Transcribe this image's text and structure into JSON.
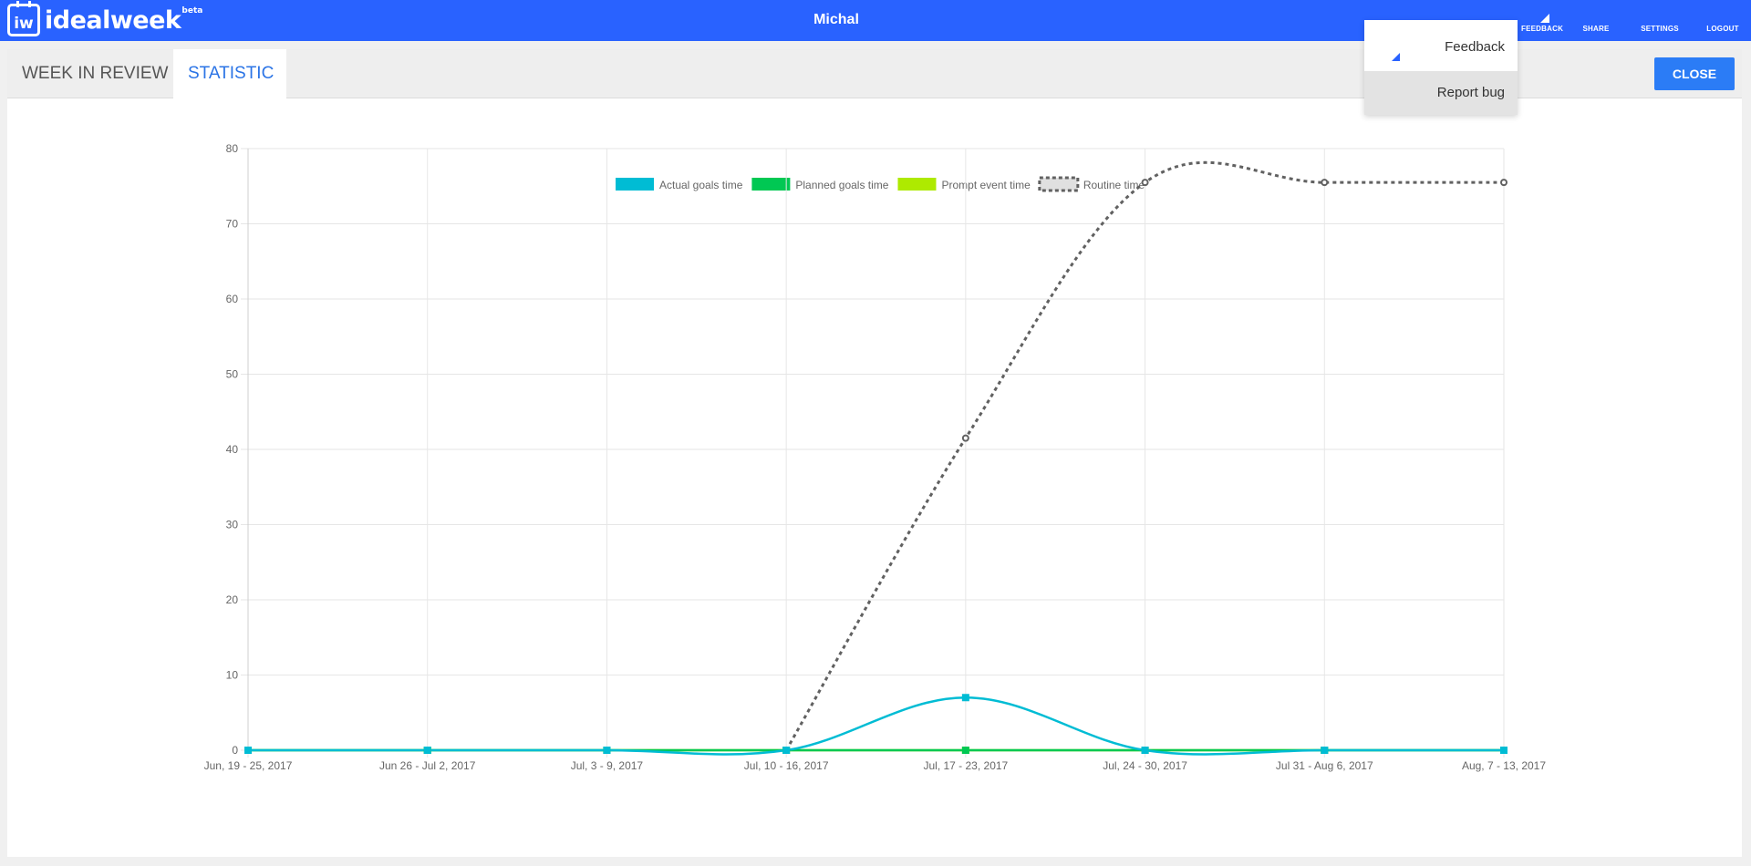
{
  "app": {
    "logo_mark": "iw",
    "logo_text": "idealweek",
    "logo_sup": "beta",
    "user_name": "Michal"
  },
  "nav": {
    "feedback": "FEEDBACK",
    "share": "SHARE",
    "settings": "SETTINGS",
    "logout": "LOGOUT"
  },
  "dropdown": {
    "feedback": "Feedback",
    "report_bug": "Report bug"
  },
  "tabs": {
    "review": "WEEK IN REVIEW",
    "statistic": "STATISTIC",
    "active": "statistic"
  },
  "close_label": "CLOSE",
  "colors": {
    "brand": "#2962ff",
    "actual": "#00bcd4",
    "planned": "#00c853",
    "prompt": "#aeea00",
    "routine": "#616161"
  },
  "chart_data": {
    "type": "line",
    "categories": [
      "Jun, 19 - 25, 2017",
      "Jun 26 - Jul 2, 2017",
      "Jul, 3 - 9, 2017",
      "Jul, 10 - 16, 2017",
      "Jul, 17 - 23, 2017",
      "Jul, 24 - 30, 2017",
      "Jul 31 - Aug 6, 2017",
      "Aug, 7 - 13, 2017"
    ],
    "ylim": [
      0,
      80
    ],
    "yticks": [
      0,
      10,
      20,
      30,
      40,
      50,
      60,
      70,
      80
    ],
    "grid": true,
    "legend_position": "top",
    "series": [
      {
        "name": "Actual goals time",
        "color": "#00bcd4",
        "values": [
          0,
          0,
          0,
          0,
          7,
          0,
          0,
          0
        ],
        "style": "solid"
      },
      {
        "name": "Planned goals time",
        "color": "#00c853",
        "values": [
          0,
          0,
          0,
          0,
          0,
          0,
          0,
          0
        ],
        "style": "solid"
      },
      {
        "name": "Prompt event time",
        "color": "#aeea00",
        "values": [
          0,
          0,
          0,
          0,
          0,
          0,
          0,
          0
        ],
        "style": "solid"
      },
      {
        "name": "Routine time",
        "color": "#616161",
        "values": [
          null,
          null,
          null,
          0,
          41.5,
          75.5,
          75.5,
          75.5
        ],
        "style": "dotted"
      }
    ]
  }
}
